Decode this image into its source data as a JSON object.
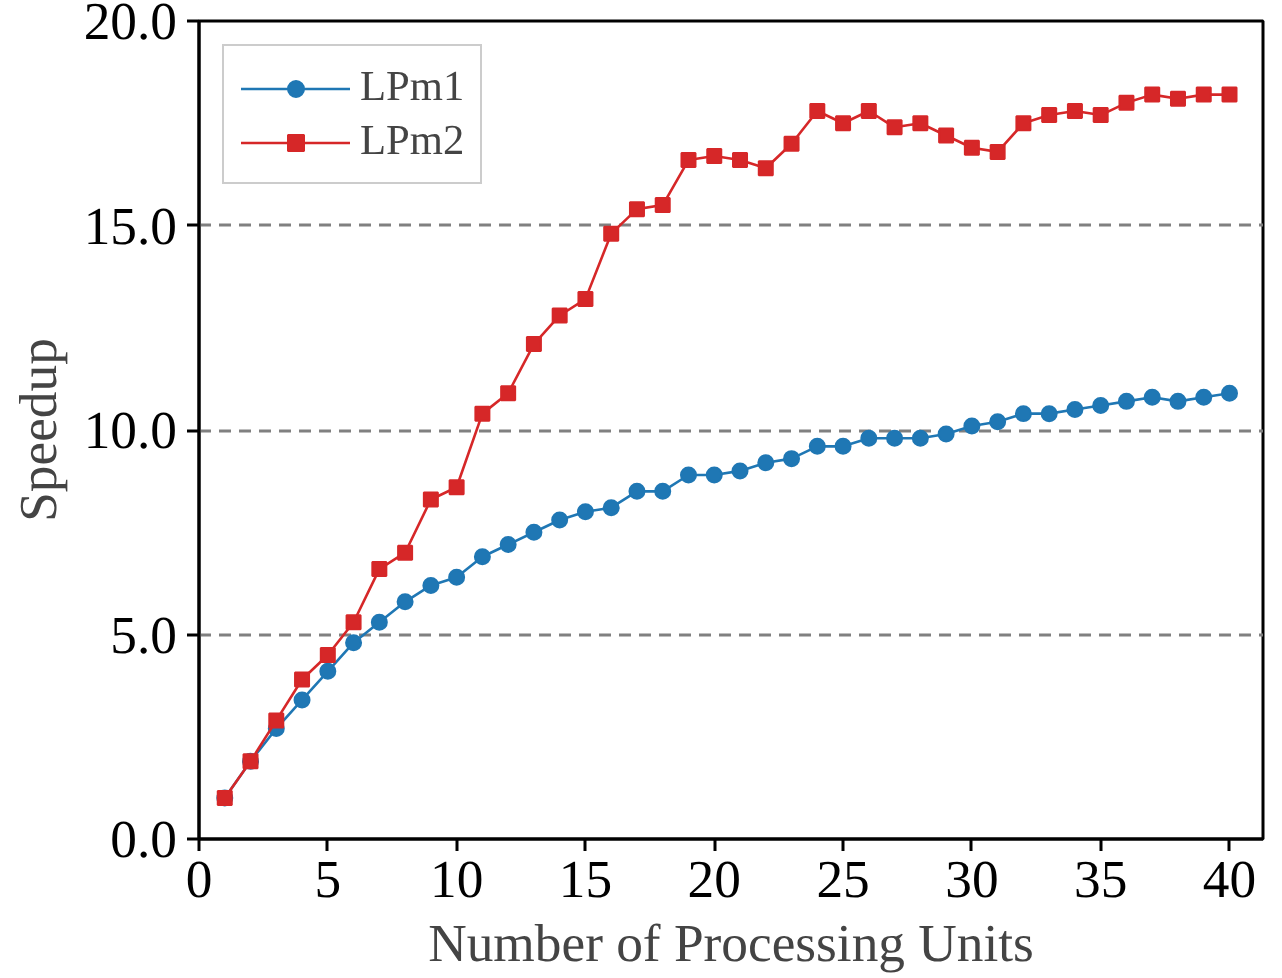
{
  "chart_data": {
    "type": "line",
    "xlabel": "Number of Processing Units",
    "ylabel": "Speedup",
    "x": [
      1,
      2,
      3,
      4,
      5,
      6,
      7,
      8,
      9,
      10,
      11,
      12,
      13,
      14,
      15,
      16,
      17,
      18,
      19,
      20,
      21,
      22,
      23,
      24,
      25,
      26,
      27,
      28,
      29,
      30,
      31,
      32,
      33,
      34,
      35,
      36,
      37,
      38,
      39,
      40
    ],
    "series": [
      {
        "name": "LPm1",
        "color": "#1f77b4",
        "marker": "circle",
        "values": [
          1.0,
          1.9,
          2.7,
          3.4,
          4.1,
          4.8,
          5.3,
          5.8,
          6.2,
          6.4,
          6.9,
          7.2,
          7.5,
          7.8,
          8.0,
          8.1,
          8.5,
          8.5,
          8.9,
          8.9,
          9.0,
          9.2,
          9.3,
          9.6,
          9.6,
          9.8,
          9.8,
          9.8,
          9.9,
          10.1,
          10.2,
          10.4,
          10.4,
          10.5,
          10.6,
          10.7,
          10.8,
          10.7,
          10.8,
          10.9
        ]
      },
      {
        "name": "LPm2",
        "color": "#d62728",
        "marker": "square",
        "values": [
          1.0,
          1.9,
          2.9,
          3.9,
          4.5,
          5.3,
          6.6,
          7.0,
          8.3,
          8.6,
          10.4,
          10.9,
          12.1,
          12.8,
          13.2,
          14.8,
          15.4,
          15.5,
          16.6,
          16.7,
          16.6,
          16.4,
          17.0,
          17.8,
          17.5,
          17.8,
          17.4,
          17.5,
          17.2,
          16.9,
          16.8,
          17.5,
          17.7,
          17.8,
          17.7,
          18.0,
          18.2,
          18.1,
          18.2,
          18.2
        ]
      }
    ],
    "xlim": [
      0,
      41.3
    ],
    "xticks": [
      0,
      5,
      10,
      15,
      20,
      25,
      30,
      35,
      40
    ],
    "ylim": [
      0,
      20
    ],
    "yticks": [
      {
        "value": 0,
        "label": "0.0"
      },
      {
        "value": 5,
        "label": "5.0"
      },
      {
        "value": 10,
        "label": "10.0"
      },
      {
        "value": 15,
        "label": "15.0"
      },
      {
        "value": 20,
        "label": "20.0"
      }
    ],
    "grid": "y",
    "legend": "top left",
    "line_style": "solid"
  }
}
